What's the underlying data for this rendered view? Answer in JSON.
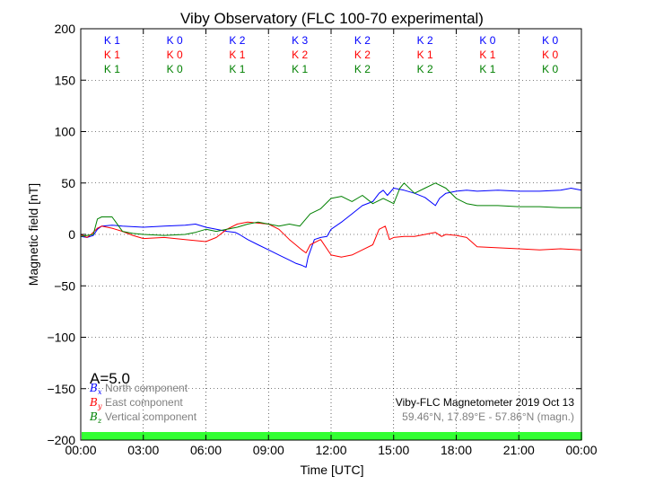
{
  "chart_data": {
    "type": "line",
    "title": "Viby Observatory (FLC 100-70 experimental)",
    "xlabel": "Time [UTC]",
    "ylabel": "Magnetic field [nT]",
    "xlim": [
      0,
      24
    ],
    "ylim": [
      -200,
      200
    ],
    "x_ticks": [
      0,
      3,
      6,
      9,
      12,
      15,
      18,
      21,
      24
    ],
    "x_tick_labels": [
      "00:00",
      "03:00",
      "06:00",
      "09:00",
      "12:00",
      "15:00",
      "18:00",
      "21:00",
      "00:00"
    ],
    "y_ticks": [
      -200,
      -150,
      -100,
      -50,
      0,
      50,
      100,
      150,
      200
    ],
    "y_tick_labels": [
      "−200",
      "−150",
      "−100",
      "−50",
      "0",
      "50",
      "100",
      "150",
      "200"
    ],
    "grid": true,
    "k_indices": {
      "x_centers": [
        1.5,
        4.5,
        7.5,
        10.5,
        13.5,
        16.5,
        19.5,
        22.5
      ],
      "rows": [
        {
          "color": "#0000ff",
          "labels": [
            "K 1",
            "K 0",
            "K 2",
            "K 3",
            "K 2",
            "K 2",
            "K 0",
            "K 0"
          ]
        },
        {
          "color": "#ff0000",
          "labels": [
            "K 1",
            "K 0",
            "K 1",
            "K 2",
            "K 2",
            "K 1",
            "K 1",
            "K 0"
          ]
        },
        {
          "color": "#008000",
          "labels": [
            "K 1",
            "K 0",
            "K 1",
            "K 1",
            "K 2",
            "K 2",
            "K 1",
            "K 0"
          ]
        }
      ]
    },
    "a_index": "A=5.0",
    "legend": {
      "placement": "bottom-left",
      "entries": [
        {
          "symbol": "B",
          "subscript": "x",
          "text": "North component",
          "color": "#0000ff"
        },
        {
          "symbol": "B",
          "subscript": "y",
          "text": "East component",
          "color": "#ff0000"
        },
        {
          "symbol": "B",
          "subscript": "z",
          "text": "Vertical component",
          "color": "#008000"
        }
      ]
    },
    "info": {
      "line1": "Viby-FLC Magnetometer 2019 Oct 13",
      "line2": "59.46°N, 17.89°E - 57.86°N (magn.)"
    },
    "status_bar_color": "#33ff33",
    "series": [
      {
        "name": "North component",
        "color": "#0000ff",
        "x": [
          0,
          0.3,
          0.6,
          0.8,
          1.0,
          1.5,
          2.0,
          3.0,
          4.0,
          5.0,
          5.5,
          6.0,
          6.5,
          7.0,
          7.4,
          7.6,
          8.0,
          8.5,
          9.0,
          9.5,
          10.0,
          10.3,
          10.6,
          10.8,
          10.9,
          11.2,
          11.5,
          11.8,
          12.0,
          12.5,
          13.0,
          13.5,
          14.0,
          14.3,
          14.5,
          14.7,
          15.0,
          15.5,
          16.0,
          16.5,
          17.0,
          17.2,
          17.5,
          18.0,
          18.5,
          19.0,
          20.0,
          21.0,
          22.0,
          23.0,
          23.5,
          24.0
        ],
        "y": [
          -2,
          -3,
          -1,
          5,
          8,
          9,
          8,
          7,
          8,
          9,
          10,
          7,
          5,
          3,
          2,
          0,
          -5,
          -10,
          -15,
          -20,
          -25,
          -28,
          -30,
          -32,
          -22,
          -5,
          -3,
          -2,
          5,
          12,
          20,
          28,
          32,
          40,
          43,
          38,
          45,
          43,
          40,
          36,
          28,
          35,
          40,
          42,
          43,
          42,
          43,
          42,
          42,
          43,
          45,
          43
        ]
      },
      {
        "name": "East component",
        "color": "#ff0000",
        "x": [
          0,
          0.3,
          0.5,
          0.8,
          1.0,
          1.5,
          2.0,
          2.5,
          3.0,
          4.0,
          5.0,
          6.0,
          6.5,
          7.0,
          7.5,
          8.0,
          8.5,
          9.0,
          9.5,
          10.0,
          10.3,
          10.6,
          10.8,
          11.0,
          11.5,
          12.0,
          12.5,
          13.0,
          13.5,
          14.0,
          14.3,
          14.6,
          14.8,
          15.0,
          15.5,
          16.0,
          16.5,
          17.0,
          17.3,
          17.5,
          18.0,
          18.5,
          19.0,
          20.0,
          21.0,
          22.0,
          23.0,
          24.0
        ],
        "y": [
          0,
          -3,
          0,
          6,
          8,
          6,
          3,
          -1,
          -4,
          -3,
          -5,
          -7,
          -3,
          5,
          10,
          12,
          11,
          10,
          5,
          -5,
          -10,
          -15,
          -18,
          -10,
          -5,
          -20,
          -22,
          -20,
          -15,
          -10,
          5,
          8,
          -5,
          -3,
          -2,
          -2,
          0,
          2,
          -2,
          0,
          -1,
          -3,
          -12,
          -13,
          -14,
          -15,
          -14,
          -15
        ]
      },
      {
        "name": "Vertical component",
        "color": "#008000",
        "x": [
          0,
          0.3,
          0.6,
          0.8,
          1.0,
          1.5,
          2.0,
          2.5,
          3.0,
          4.0,
          5.0,
          5.5,
          6.0,
          6.5,
          7.0,
          7.5,
          8.0,
          8.5,
          9.0,
          9.5,
          10.0,
          10.5,
          11.0,
          11.5,
          12.0,
          12.5,
          13.0,
          13.5,
          14.0,
          14.5,
          15.0,
          15.3,
          15.5,
          16.0,
          16.5,
          17.0,
          17.5,
          18.0,
          18.5,
          19.0,
          20.0,
          21.0,
          22.0,
          23.0,
          24.0
        ],
        "y": [
          -2,
          -1,
          0,
          15,
          17,
          17,
          3,
          1,
          0,
          -1,
          0,
          2,
          5,
          3,
          5,
          7,
          10,
          12,
          10,
          8,
          10,
          8,
          20,
          25,
          35,
          37,
          32,
          38,
          30,
          35,
          30,
          45,
          50,
          40,
          45,
          50,
          45,
          35,
          30,
          28,
          28,
          27,
          27,
          26,
          26
        ]
      }
    ]
  }
}
